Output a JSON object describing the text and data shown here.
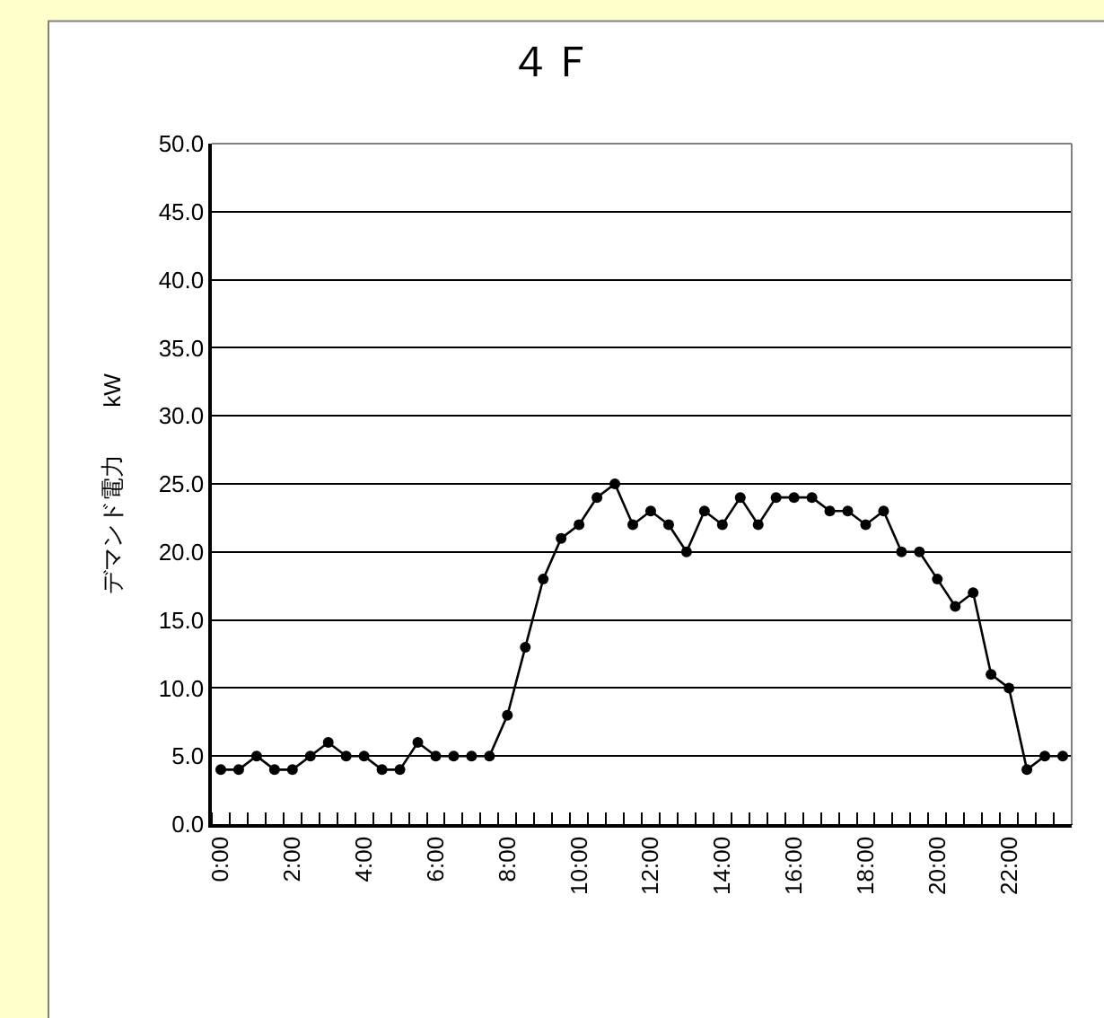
{
  "chart_data": {
    "type": "line",
    "title": "４Ｆ",
    "ylabel": "デマンド電力　　kW",
    "categories": [
      "0:00",
      null,
      null,
      null,
      "2:00",
      null,
      null,
      null,
      "4:00",
      null,
      null,
      null,
      "6:00",
      null,
      null,
      null,
      "8:00",
      null,
      null,
      null,
      "10:00",
      null,
      null,
      null,
      "12:00",
      null,
      null,
      null,
      "14:00",
      null,
      null,
      null,
      "16:00",
      null,
      null,
      null,
      "18:00",
      null,
      null,
      null,
      "20:00",
      null,
      null,
      null,
      "22:00",
      null,
      null,
      null
    ],
    "values": [
      4,
      4,
      5,
      4,
      4,
      5,
      6,
      5,
      5,
      4,
      4,
      6,
      5,
      5,
      5,
      5,
      8,
      13,
      18,
      21,
      22,
      24,
      25,
      22,
      23,
      22,
      20,
      23,
      22,
      24,
      22,
      24,
      24,
      24,
      23,
      23,
      22,
      23,
      20,
      20,
      18,
      16,
      17,
      11,
      10,
      4,
      5,
      5
    ],
    "color": "#000000",
    "marker": "circle",
    "line_style": "solid",
    "ylim": [
      0,
      50
    ],
    "yticks": [
      {
        "value": 0,
        "label": "0.0"
      },
      {
        "value": 5,
        "label": "5.0"
      },
      {
        "value": 10,
        "label": "10.0"
      },
      {
        "value": 15,
        "label": "15.0"
      },
      {
        "value": 20,
        "label": "20.0"
      },
      {
        "value": 25,
        "label": "25.0"
      },
      {
        "value": 30,
        "label": "30.0"
      },
      {
        "value": 35,
        "label": "35.0"
      },
      {
        "value": 40,
        "label": "40.0"
      },
      {
        "value": 45,
        "label": "45.0"
      },
      {
        "value": 50,
        "label": "50.0"
      }
    ],
    "grid": "y",
    "legend": false
  }
}
